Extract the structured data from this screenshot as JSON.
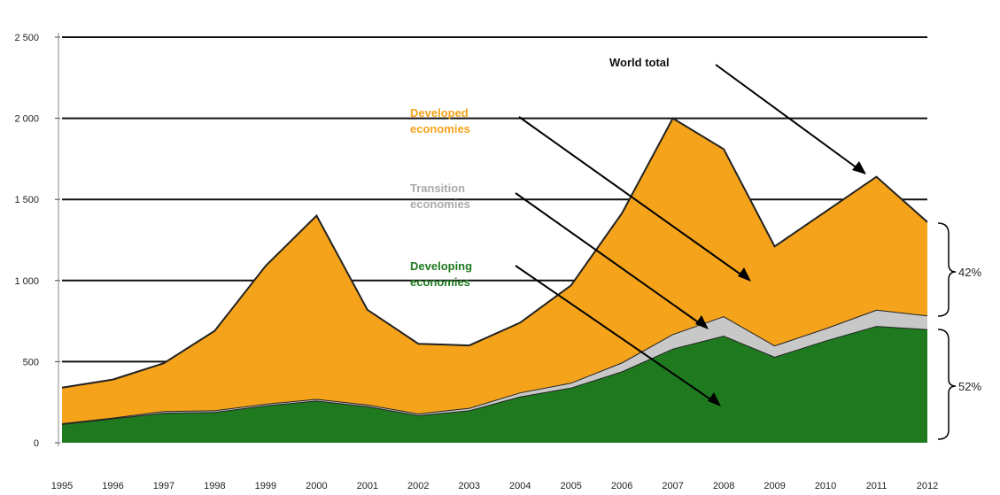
{
  "chart_data": {
    "type": "area",
    "stacked": true,
    "categories": [
      "1995",
      "1996",
      "1997",
      "1998",
      "1999",
      "2000",
      "2001",
      "2002",
      "2003",
      "2004",
      "2005",
      "2006",
      "2007",
      "2008",
      "2009",
      "2010",
      "2011",
      "2012"
    ],
    "series": [
      {
        "name": "Developing economies",
        "color": "#1f7a1f",
        "values": [
          115,
          150,
          185,
          190,
          230,
          260,
          225,
          170,
          200,
          285,
          340,
          440,
          580,
          660,
          530,
          630,
          720,
          700
        ]
      },
      {
        "name": "Transition economies",
        "color": "#c8c8c8",
        "values": [
          5,
          5,
          10,
          10,
          10,
          10,
          10,
          10,
          15,
          25,
          30,
          55,
          90,
          120,
          70,
          75,
          100,
          85
        ]
      },
      {
        "name": "Developed economies",
        "color": "#f5a31a",
        "values": [
          220,
          235,
          295,
          490,
          850,
          1130,
          585,
          430,
          385,
          430,
          600,
          920,
          1330,
          1030,
          610,
          720,
          820,
          575
        ]
      }
    ],
    "totals": [
      340,
      390,
      490,
      690,
      1090,
      1400,
      820,
      610,
      600,
      740,
      970,
      1415,
      2000,
      1810,
      1210,
      1425,
      1640,
      1360
    ],
    "yticks": [
      "0",
      "500",
      "1 000",
      "1 500",
      "2 000",
      "2 500"
    ],
    "ytick_values": [
      0,
      500,
      1000,
      1500,
      2000,
      2500
    ],
    "ylim": [
      0,
      2600
    ],
    "grid": true,
    "annotations": {
      "world_total": "World total",
      "developed": [
        "Developed",
        "economies"
      ],
      "transition": [
        "Transition",
        "economies"
      ],
      "developing": [
        "Developing",
        "economies"
      ],
      "share_upper": "42%",
      "share_lower": "52%"
    },
    "annotation_colors": {
      "world_total": "#111111",
      "developed": "#f5a31a",
      "transition": "#aaaaaa",
      "developing": "#1f7a1f"
    }
  }
}
